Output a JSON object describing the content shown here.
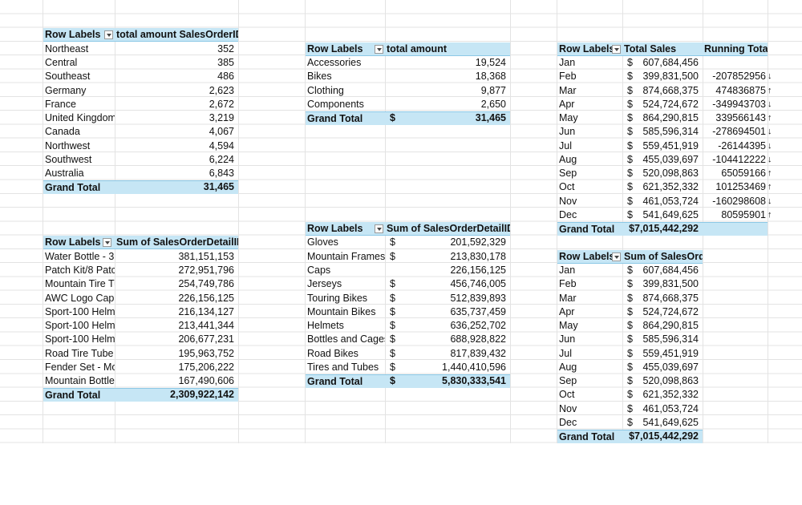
{
  "tables": [
    {
      "headers": [
        "Row Labels",
        "total amount SalesOrderID"
      ],
      "rows": [
        {
          "label": "Northeast",
          "value": "352"
        },
        {
          "label": "Central",
          "value": "385"
        },
        {
          "label": "Southeast",
          "value": "486"
        },
        {
          "label": "Germany",
          "value": "2,623"
        },
        {
          "label": "France",
          "value": "2,672"
        },
        {
          "label": "United Kingdom",
          "value": "3,219"
        },
        {
          "label": "Canada",
          "value": "4,067"
        },
        {
          "label": "Northwest",
          "value": "4,594"
        },
        {
          "label": "Southwest",
          "value": "6,224"
        },
        {
          "label": "Australia",
          "value": "6,843"
        }
      ],
      "total": {
        "label": "Grand Total",
        "value": "31,465"
      }
    },
    {
      "headers": [
        "Row Labels",
        "total amount"
      ],
      "rows": [
        {
          "label": "Accessories",
          "value": "19,524"
        },
        {
          "label": "Bikes",
          "value": "18,368"
        },
        {
          "label": "Clothing",
          "value": "9,877"
        },
        {
          "label": "Components",
          "value": "2,650"
        }
      ],
      "total": {
        "label": "Grand Total",
        "currency": "$",
        "value": "31,465"
      }
    },
    {
      "headers": [
        "Row Labels",
        "Total Sales",
        "Running Total"
      ],
      "rows": [
        {
          "label": "Jan",
          "currency": "$",
          "value": "607,684,456"
        },
        {
          "label": "Feb",
          "currency": "$",
          "value": "399,831,500",
          "running": "-207852956",
          "trend": "↓"
        },
        {
          "label": "Mar",
          "currency": "$",
          "value": "874,668,375",
          "running": "474836875",
          "trend": "↑"
        },
        {
          "label": "Apr",
          "currency": "$",
          "value": "524,724,672",
          "running": "-349943703",
          "trend": "↓"
        },
        {
          "label": "May",
          "currency": "$",
          "value": "864,290,815",
          "running": "339566143",
          "trend": "↑"
        },
        {
          "label": "Jun",
          "currency": "$",
          "value": "585,596,314",
          "running": "-278694501",
          "trend": "↓"
        },
        {
          "label": "Jul",
          "currency": "$",
          "value": "559,451,919",
          "running": "-26144395",
          "trend": "↓"
        },
        {
          "label": "Aug",
          "currency": "$",
          "value": "455,039,697",
          "running": "-104412222",
          "trend": "↓"
        },
        {
          "label": "Sep",
          "currency": "$",
          "value": "520,098,863",
          "running": "65059166",
          "trend": "↑"
        },
        {
          "label": "Oct",
          "currency": "$",
          "value": "621,352,332",
          "running": "101253469",
          "trend": "↑"
        },
        {
          "label": "Nov",
          "currency": "$",
          "value": "461,053,724",
          "running": "-160298608",
          "trend": "↓"
        },
        {
          "label": "Dec",
          "currency": "$",
          "value": "541,649,625",
          "running": "80595901",
          "trend": "↑"
        }
      ],
      "total": {
        "label": "Grand Total",
        "value": "$7,015,442,292"
      }
    },
    {
      "headers": [
        "Row Labels",
        "Sum of SalesOrderDetailID"
      ],
      "rows": [
        {
          "label": "Water Bottle - 3",
          "value": "381,151,153"
        },
        {
          "label": "Patch Kit/8 Patc",
          "value": "272,951,796"
        },
        {
          "label": "Mountain Tire Tu",
          "value": "254,749,786"
        },
        {
          "label": "AWC Logo Cap",
          "value": "226,156,125"
        },
        {
          "label": "Sport-100 Helm",
          "value": "216,134,127"
        },
        {
          "label": "Sport-100 Helm",
          "value": "213,441,344"
        },
        {
          "label": "Sport-100 Helm",
          "value": "206,677,231"
        },
        {
          "label": "Road Tire Tube",
          "value": "195,963,752"
        },
        {
          "label": "Fender Set - Mo",
          "value": "175,206,222"
        },
        {
          "label": "Mountain Bottle",
          "value": "167,490,606"
        }
      ],
      "total": {
        "label": "Grand Total",
        "value": "2,309,922,142"
      }
    },
    {
      "headers": [
        "Row Labels",
        "Sum of SalesOrderDetailID"
      ],
      "rows": [
        {
          "label": "Gloves",
          "currency": "$",
          "value": "201,592,329"
        },
        {
          "label": "Mountain Frames",
          "currency": "$",
          "value": "213,830,178"
        },
        {
          "label": "Caps",
          "value": "226,156,125"
        },
        {
          "label": "Jerseys",
          "currency": "$",
          "value": "456,746,005"
        },
        {
          "label": "Touring Bikes",
          "currency": "$",
          "value": "512,839,893"
        },
        {
          "label": "Mountain Bikes",
          "currency": "$",
          "value": "635,737,459"
        },
        {
          "label": "Helmets",
          "currency": "$",
          "value": "636,252,702"
        },
        {
          "label": "Bottles and Cages",
          "currency": "$",
          "value": "688,928,822"
        },
        {
          "label": "Road Bikes",
          "currency": "$",
          "value": "817,839,432"
        },
        {
          "label": "Tires and Tubes",
          "currency": "$",
          "value": "1,440,410,596"
        }
      ],
      "total": {
        "label": "Grand Total",
        "currency": "$",
        "value": "5,830,333,541"
      }
    },
    {
      "headers": [
        "Row Labels",
        "Sum of SalesOrderID"
      ],
      "rows": [
        {
          "label": "Jan",
          "currency": "$",
          "value": "607,684,456"
        },
        {
          "label": "Feb",
          "currency": "$",
          "value": "399,831,500"
        },
        {
          "label": "Mar",
          "currency": "$",
          "value": "874,668,375"
        },
        {
          "label": "Apr",
          "currency": "$",
          "value": "524,724,672"
        },
        {
          "label": "May",
          "currency": "$",
          "value": "864,290,815"
        },
        {
          "label": "Jun",
          "currency": "$",
          "value": "585,596,314"
        },
        {
          "label": "Jul",
          "currency": "$",
          "value": "559,451,919"
        },
        {
          "label": "Aug",
          "currency": "$",
          "value": "455,039,697"
        },
        {
          "label": "Sep",
          "currency": "$",
          "value": "520,098,863"
        },
        {
          "label": "Oct",
          "currency": "$",
          "value": "621,352,332"
        },
        {
          "label": "Nov",
          "currency": "$",
          "value": "461,053,724"
        },
        {
          "label": "Dec",
          "currency": "$",
          "value": "541,649,625"
        }
      ],
      "total": {
        "label": "Grand Total",
        "value": "$7,015,442,292"
      }
    }
  ]
}
